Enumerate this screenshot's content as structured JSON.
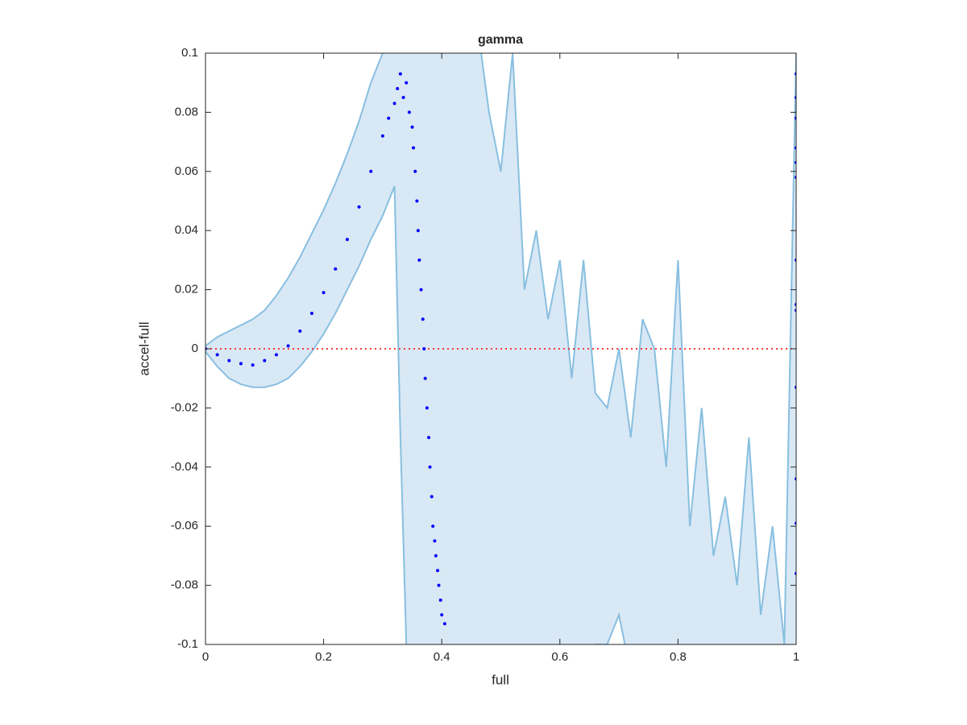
{
  "chart_data": {
    "type": "line",
    "title": "gamma",
    "x_label": "full",
    "y_label": "accel-full",
    "xlim": [
      0,
      1
    ],
    "ylim": [
      -0.1,
      0.1
    ],
    "xticks": [
      0,
      0.2,
      0.4,
      0.6,
      0.8,
      1
    ],
    "yticks": [
      -0.1,
      -0.08,
      -0.06,
      -0.04,
      -0.02,
      0,
      0.02,
      0.04,
      0.06,
      0.08,
      0.1
    ],
    "grid": false,
    "reference_line": {
      "value": 0,
      "color": "#ff0000"
    },
    "band": {
      "color": "#88bfe0",
      "fill": "#d9e8f5",
      "x": [
        0,
        0.02,
        0.04,
        0.06,
        0.08,
        0.1,
        0.12,
        0.14,
        0.16,
        0.18,
        0.2,
        0.22,
        0.24,
        0.26,
        0.28,
        0.3,
        0.31,
        0.32,
        0.33,
        0.34,
        0.35,
        0.36,
        0.4,
        0.44,
        0.46,
        0.48,
        0.5,
        0.52,
        0.54,
        0.56,
        0.58,
        0.6,
        0.62,
        0.64,
        0.66,
        0.68,
        0.7,
        0.72,
        0.74,
        0.76,
        0.78,
        0.8,
        0.82,
        0.84,
        0.86,
        0.88,
        0.9,
        0.92,
        0.94,
        0.96,
        0.98,
        1.0
      ],
      "upper": [
        0.001,
        0.004,
        0.006,
        0.008,
        0.01,
        0.013,
        0.018,
        0.024,
        0.031,
        0.039,
        0.047,
        0.056,
        0.066,
        0.077,
        0.09,
        0.1,
        0.11,
        0.12,
        0.13,
        0.14,
        0.14,
        0.14,
        0.14,
        0.14,
        0.11,
        0.08,
        0.06,
        0.1,
        0.02,
        0.04,
        0.01,
        0.03,
        -0.01,
        0.03,
        -0.015,
        -0.02,
        0.0,
        -0.03,
        0.01,
        0.0,
        -0.04,
        0.03,
        -0.06,
        -0.02,
        -0.07,
        -0.05,
        -0.08,
        -0.03,
        -0.09,
        -0.06,
        -0.1,
        0.1
      ],
      "lower": [
        -0.001,
        -0.006,
        -0.01,
        -0.012,
        -0.013,
        -0.013,
        -0.012,
        -0.01,
        -0.006,
        -0.001,
        0.005,
        0.012,
        0.02,
        0.028,
        0.037,
        0.045,
        0.05,
        0.055,
        -0.03,
        -0.1,
        -0.11,
        -0.12,
        -0.13,
        -0.13,
        -0.13,
        -0.13,
        -0.13,
        -0.13,
        -0.13,
        -0.13,
        -0.13,
        -0.13,
        -0.12,
        -0.11,
        -0.1,
        -0.1,
        -0.09,
        -0.11,
        -0.12,
        -0.11,
        -0.12,
        -0.12,
        -0.13,
        -0.12,
        -0.13,
        -0.12,
        -0.13,
        -0.12,
        -0.13,
        -0.12,
        -0.13,
        -0.13
      ]
    },
    "series": [
      {
        "type": "scatter",
        "color": "#0000ff",
        "x": [
          0,
          0.02,
          0.04,
          0.06,
          0.08,
          0.1,
          0.12,
          0.14,
          0.16,
          0.18,
          0.2,
          0.22,
          0.24,
          0.26,
          0.28,
          0.3,
          0.31,
          0.32,
          0.325,
          0.33,
          0.335,
          0.34,
          0.345,
          0.35,
          0.352,
          0.355,
          0.358,
          0.36,
          0.362,
          0.365,
          0.368,
          0.37,
          0.372,
          0.375,
          0.378,
          0.38,
          0.383,
          0.385,
          0.388,
          0.39,
          0.393,
          0.395,
          0.398,
          0.4,
          0.405,
          1,
          1,
          1,
          1,
          1,
          1,
          1,
          1,
          1,
          1,
          1,
          1,
          1
        ],
        "values": [
          0,
          -0.002,
          -0.004,
          -0.005,
          -0.0055,
          -0.004,
          -0.002,
          0.001,
          0.006,
          0.012,
          0.019,
          0.027,
          0.037,
          0.048,
          0.06,
          0.072,
          0.078,
          0.083,
          0.088,
          0.093,
          0.085,
          0.09,
          0.08,
          0.075,
          0.068,
          0.06,
          0.05,
          0.04,
          0.03,
          0.02,
          0.01,
          0.0,
          -0.01,
          -0.02,
          -0.03,
          -0.04,
          -0.05,
          -0.06,
          -0.065,
          -0.07,
          -0.075,
          -0.08,
          -0.085,
          -0.09,
          -0.093,
          0.093,
          0.085,
          0.078,
          0.068,
          0.063,
          0.058,
          0.03,
          0.015,
          0.013,
          -0.013,
          -0.044,
          -0.059,
          -0.076
        ]
      }
    ]
  }
}
